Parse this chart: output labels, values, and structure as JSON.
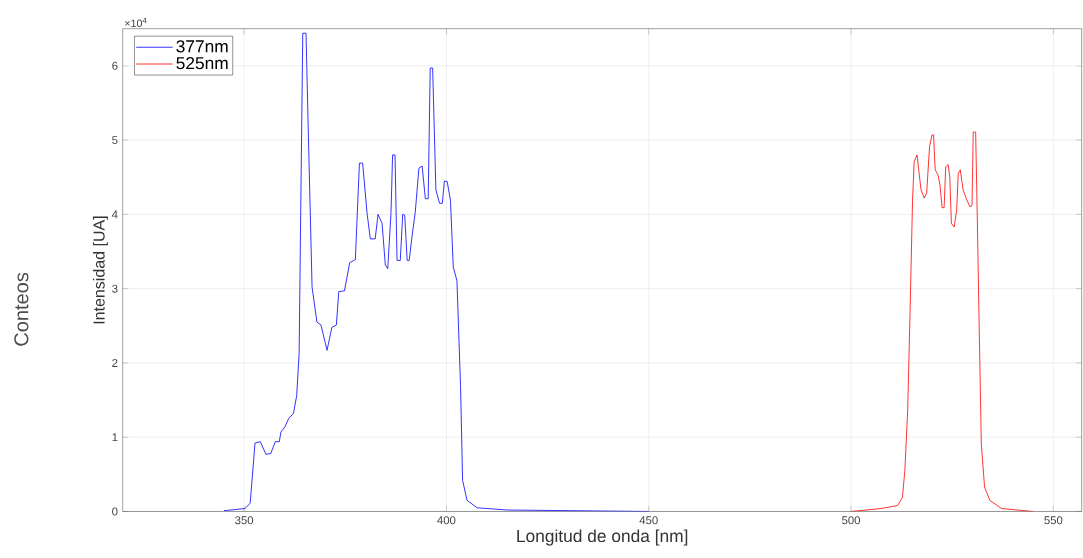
{
  "chart_data": {
    "type": "line",
    "xlabel": "Longitud de onda [nm]",
    "ylabel": "Intensidad [UA]",
    "annotations": [
      "×10$^{4}$",
      "Conteos"
    ],
    "xlim": [
      320,
      557
    ],
    "xticks": [
      350,
      400,
      450,
      500,
      550
    ],
    "ylim": [
      0,
      6.5
    ],
    "yticks": [
      0,
      1,
      2,
      3,
      4,
      5,
      6
    ],
    "grid": true,
    "legend": "top left",
    "line_style": "solid",
    "series": [
      {
        "name": "377nm",
        "color": "#0000ff",
        "x": [
          345,
          350.2,
          351.5,
          352.7,
          354,
          355.4,
          356.6,
          357.7,
          358.7,
          359.1,
          360.1,
          361,
          362.2,
          363,
          363.6,
          364,
          364.5,
          365.3,
          365.9,
          366.8,
          368,
          369,
          370.5,
          371.7,
          372.8,
          373.4,
          374.8,
          376.1,
          377.5,
          378.5,
          379.3,
          380.4,
          381.2,
          382.4,
          383.1,
          384.1,
          384.9,
          385.5,
          386.3,
          386.7,
          387.3,
          387.8,
          388.6,
          389.2,
          389.7,
          390.3,
          390.8,
          391.5,
          392.3,
          393.2,
          394,
          394.8,
          395.5,
          396,
          396.6,
          397.4,
          398.3,
          399,
          399.5,
          400.2,
          401,
          401.7,
          402.6,
          403.5,
          404,
          405.1,
          407.6,
          415,
          450
        ],
        "values": [
          0.01,
          0.04,
          0.11,
          0.92,
          0.94,
          0.77,
          0.78,
          0.94,
          0.94,
          1.07,
          1.14,
          1.25,
          1.32,
          1.56,
          2.13,
          4.06,
          6.44,
          6.44,
          5.04,
          3.02,
          2.55,
          2.51,
          2.17,
          2.48,
          2.51,
          2.96,
          2.97,
          3.35,
          3.39,
          4.69,
          4.69,
          4.01,
          3.67,
          3.67,
          4.0,
          3.88,
          3.32,
          3.27,
          4.01,
          4.8,
          4.8,
          3.38,
          3.38,
          4.0,
          3.99,
          3.38,
          3.38,
          3.7,
          4.03,
          4.62,
          4.65,
          4.21,
          4.21,
          5.97,
          5.97,
          4.33,
          4.15,
          4.15,
          4.45,
          4.44,
          4.19,
          3.29,
          3.11,
          1.68,
          0.42,
          0.15,
          0.05,
          0.02,
          0
        ]
      },
      {
        "name": "525nm",
        "color": "#ff0000",
        "x": [
          500,
          507.4,
          511.5,
          512.7,
          513.3,
          514,
          514.6,
          515.2,
          515.6,
          516.3,
          517.3,
          518.1,
          518.7,
          519.4,
          520,
          520.4,
          520.8,
          521.5,
          522,
          522.5,
          523,
          523.4,
          524,
          524.4,
          524.8,
          525.5,
          526.1,
          526.5,
          527,
          527.7,
          528.5,
          529.4,
          529.9,
          530.2,
          530.8,
          531.2,
          531.6,
          532.2,
          533,
          534.3,
          537.2,
          545
        ],
        "values": [
          0,
          0.04,
          0.08,
          0.19,
          0.55,
          1.36,
          2.71,
          4.19,
          4.71,
          4.8,
          4.33,
          4.22,
          4.29,
          4.91,
          5.07,
          5.07,
          4.6,
          4.53,
          4.39,
          4.09,
          4.09,
          4.64,
          4.67,
          4.51,
          3.88,
          3.83,
          4.06,
          4.55,
          4.6,
          4.33,
          4.21,
          4.1,
          4.12,
          5.11,
          5.11,
          3.97,
          2.71,
          0.91,
          0.33,
          0.15,
          0.04,
          0
        ]
      }
    ]
  }
}
